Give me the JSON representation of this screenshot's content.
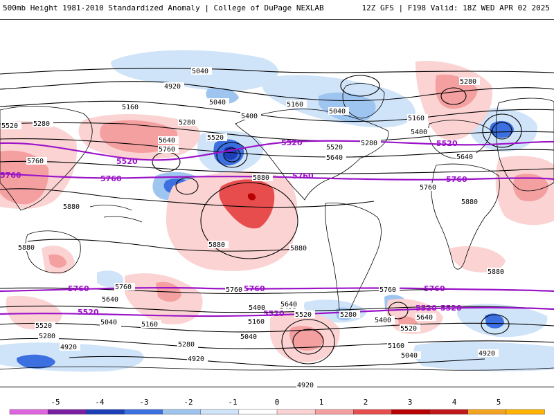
{
  "header": {
    "title": "500mb Height 1981-2010 Standardized Anomaly | College of DuPage NEXLAB",
    "run": "12Z GFS | F198 Valid: 18Z WED APR 02 2025"
  },
  "colorbar": {
    "ticks": [
      "-5",
      "-4",
      "-3",
      "-2",
      "-1",
      "0",
      "1",
      "2",
      "3",
      "4",
      "5"
    ],
    "colors": [
      "#e066e0",
      "#7a1fa2",
      "#1c3fb8",
      "#3c6fe0",
      "#9ec4f0",
      "#cfe3f9",
      "#ffffff",
      "#fbd3d3",
      "#f4a0a0",
      "#e84d4d",
      "#b80000",
      "#c01818",
      "#f2a41f",
      "#ffb300"
    ]
  },
  "contours": {
    "black_labels": [
      "5040",
      "4920",
      "5040",
      "5160",
      "5280",
      "5520",
      "5160",
      "5040",
      "5400",
      "5280",
      "5520",
      "5280",
      "5160",
      "5400",
      "5640",
      "5760",
      "5880",
      "5880",
      "5880",
      "5880",
      "5760",
      "5640",
      "5520",
      "5280",
      "5760",
      "5880",
      "5880",
      "5640",
      "5400",
      "5160",
      "5040",
      "5280",
      "4920",
      "5400",
      "5160",
      "5040",
      "5760",
      "5760",
      "5640",
      "5520",
      "5280",
      "5040",
      "4920",
      "5160",
      "4920",
      "5520",
      "5640",
      "5400",
      "5280",
      "5520",
      "5640",
      "5040",
      "4920",
      "5760",
      "5880"
    ],
    "purple_labels": [
      "5520",
      "5520",
      "5760",
      "5760",
      "5760",
      "5520",
      "5520",
      "5760",
      "5760",
      "5760",
      "5520",
      "5520",
      "5520",
      "5760"
    ]
  }
}
